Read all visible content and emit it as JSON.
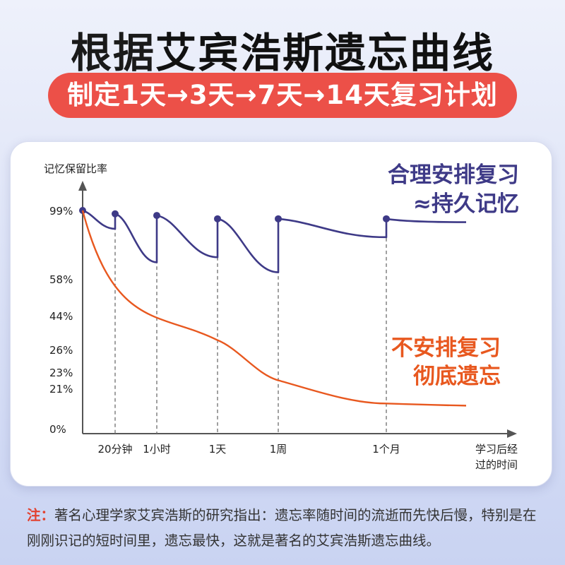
{
  "header": {
    "title_prefix": "根据",
    "title_main": "艾宾浩斯遗忘曲线",
    "subtitle": "制定1天→3天→7天→14天复习计划"
  },
  "colors": {
    "review_curve": "#3e3a87",
    "forget_curve": "#e8581f",
    "accent_red": "#ec5048",
    "note_label": "#e2412f"
  },
  "chart_data": {
    "type": "line",
    "ylabel": "记忆保留比率",
    "xlabel": "学习后经过的时间",
    "y_ticks": [
      "99%",
      "58%",
      "44%",
      "26%",
      "23%",
      "21%",
      "0%"
    ],
    "x_ticks": [
      "20分钟",
      "1小时",
      "1天",
      "1周",
      "1个月"
    ],
    "series": [
      {
        "name": "合理安排复习≈持久记忆",
        "label_lines": [
          "合理安排复习",
          "≈持久记忆"
        ],
        "review_points": [
          {
            "x": "0",
            "y": 99
          },
          {
            "x": "20分钟",
            "y": 97
          },
          {
            "x": "1小时",
            "y": 96
          },
          {
            "x": "1天",
            "y": 94
          },
          {
            "x": "1周",
            "y": 94
          },
          {
            "x": "1个月",
            "y": 94
          }
        ],
        "decay_minimums": [
          {
            "before": "20分钟",
            "y": 88
          },
          {
            "before": "1小时",
            "y": 68
          },
          {
            "before": "1天",
            "y": 71
          },
          {
            "before": "1周",
            "y": 62
          },
          {
            "before": "1个月",
            "y": 83
          }
        ],
        "final_y": 92
      },
      {
        "name": "不安排复习彻底遗忘",
        "label_lines": [
          "不安排复习",
          "彻底遗忘"
        ],
        "points": [
          {
            "x": "0",
            "y": 99
          },
          {
            "x": "1天",
            "y": 31
          },
          {
            "x": "1周",
            "y": 22
          },
          {
            "x": "1个月",
            "y": 14
          },
          {
            "x": "end",
            "y": 13
          }
        ]
      }
    ],
    "grid": false
  },
  "note": {
    "label": "注：",
    "text": "著名心理学家艾宾浩斯的研究指出：遗忘率随时间的流逝而先快后慢，特别是在刚刚识记的短时间里，遗忘最快，这就是著名的艾宾浩斯遗忘曲线。"
  }
}
